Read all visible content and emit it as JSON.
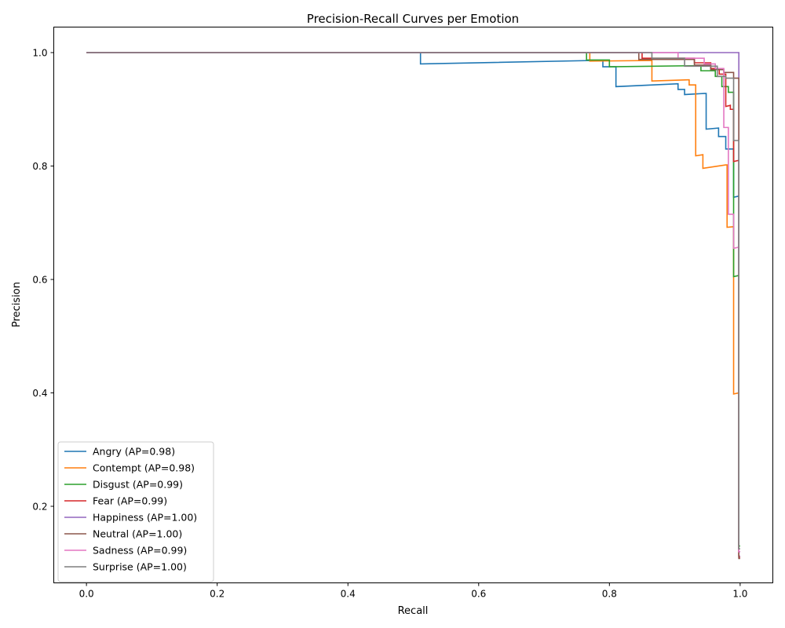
{
  "chart_data": {
    "type": "line",
    "title": "Precision-Recall Curves per Emotion",
    "xlabel": "Recall",
    "ylabel": "Precision",
    "xlim": [
      -0.05,
      1.05
    ],
    "ylim": [
      0.065,
      1.045
    ],
    "xticks": [
      0.0,
      0.2,
      0.4,
      0.6,
      0.8,
      1.0
    ],
    "xtick_labels": [
      "0.0",
      "0.2",
      "0.4",
      "0.6",
      "0.8",
      "1.0"
    ],
    "yticks": [
      0.2,
      0.4,
      0.6,
      0.8,
      1.0
    ],
    "ytick_labels": [
      "0.2",
      "0.4",
      "0.6",
      "0.8",
      "1.0"
    ],
    "grid": false,
    "legend_position": "lower-left",
    "series": [
      {
        "name": "Angry (AP=0.98)",
        "color": "#1f77b4",
        "points": [
          [
            0.0,
            1.0
          ],
          [
            0.511,
            1.0
          ],
          [
            0.511,
            0.98
          ],
          [
            0.77,
            0.986
          ],
          [
            0.79,
            0.986
          ],
          [
            0.79,
            0.975
          ],
          [
            0.81,
            0.975
          ],
          [
            0.81,
            0.94
          ],
          [
            0.905,
            0.945
          ],
          [
            0.905,
            0.935
          ],
          [
            0.915,
            0.935
          ],
          [
            0.915,
            0.926
          ],
          [
            0.945,
            0.928
          ],
          [
            0.948,
            0.928
          ],
          [
            0.948,
            0.865
          ],
          [
            0.967,
            0.867
          ],
          [
            0.967,
            0.852
          ],
          [
            0.978,
            0.852
          ],
          [
            0.978,
            0.83
          ],
          [
            0.99,
            0.83
          ],
          [
            0.99,
            0.745
          ],
          [
            0.998,
            0.747
          ],
          [
            0.998,
            0.12
          ],
          [
            1.0,
            0.12
          ]
        ]
      },
      {
        "name": "Contempt (AP=0.98)",
        "color": "#ff7f0e",
        "points": [
          [
            0.0,
            1.0
          ],
          [
            0.77,
            1.0
          ],
          [
            0.77,
            0.985
          ],
          [
            0.86,
            0.986
          ],
          [
            0.865,
            0.986
          ],
          [
            0.865,
            0.95
          ],
          [
            0.92,
            0.952
          ],
          [
            0.922,
            0.952
          ],
          [
            0.922,
            0.943
          ],
          [
            0.932,
            0.943
          ],
          [
            0.932,
            0.818
          ],
          [
            0.943,
            0.82
          ],
          [
            0.943,
            0.796
          ],
          [
            0.978,
            0.802
          ],
          [
            0.98,
            0.802
          ],
          [
            0.98,
            0.692
          ],
          [
            0.99,
            0.693
          ],
          [
            0.99,
            0.398
          ],
          [
            0.998,
            0.4
          ],
          [
            0.998,
            0.112
          ],
          [
            1.0,
            0.112
          ]
        ]
      },
      {
        "name": "Disgust (AP=0.99)",
        "color": "#2ca02c",
        "points": [
          [
            0.0,
            1.0
          ],
          [
            0.765,
            1.0
          ],
          [
            0.765,
            0.987
          ],
          [
            0.8,
            0.987
          ],
          [
            0.8,
            0.975
          ],
          [
            0.935,
            0.977
          ],
          [
            0.94,
            0.977
          ],
          [
            0.94,
            0.968
          ],
          [
            0.962,
            0.968
          ],
          [
            0.962,
            0.958
          ],
          [
            0.972,
            0.958
          ],
          [
            0.972,
            0.94
          ],
          [
            0.982,
            0.94
          ],
          [
            0.982,
            0.93
          ],
          [
            0.99,
            0.93
          ],
          [
            0.99,
            0.605
          ],
          [
            0.998,
            0.607
          ],
          [
            0.998,
            0.13
          ],
          [
            1.0,
            0.13
          ]
        ]
      },
      {
        "name": "Fear (AP=0.99)",
        "color": "#d62728",
        "points": [
          [
            0.0,
            1.0
          ],
          [
            0.85,
            1.0
          ],
          [
            0.85,
            0.99
          ],
          [
            0.93,
            0.99
          ],
          [
            0.93,
            0.982
          ],
          [
            0.955,
            0.982
          ],
          [
            0.955,
            0.972
          ],
          [
            0.968,
            0.972
          ],
          [
            0.968,
            0.962
          ],
          [
            0.978,
            0.962
          ],
          [
            0.978,
            0.905
          ],
          [
            0.985,
            0.907
          ],
          [
            0.985,
            0.9
          ],
          [
            0.99,
            0.9
          ],
          [
            0.99,
            0.808
          ],
          [
            0.998,
            0.81
          ],
          [
            0.998,
            0.11
          ],
          [
            1.0,
            0.11
          ]
        ]
      },
      {
        "name": "Happiness (AP=1.00)",
        "color": "#9467bd",
        "points": [
          [
            0.0,
            1.0
          ],
          [
            0.998,
            1.0
          ],
          [
            0.998,
            0.112
          ],
          [
            1.0,
            0.112
          ]
        ]
      },
      {
        "name": "Neutral (AP=1.00)",
        "color": "#8c564b",
        "points": [
          [
            0.0,
            1.0
          ],
          [
            0.845,
            1.0
          ],
          [
            0.845,
            0.988
          ],
          [
            0.93,
            0.988
          ],
          [
            0.93,
            0.978
          ],
          [
            0.955,
            0.978
          ],
          [
            0.955,
            0.97
          ],
          [
            0.975,
            0.97
          ],
          [
            0.975,
            0.965
          ],
          [
            0.99,
            0.965
          ],
          [
            0.99,
            0.955
          ],
          [
            0.998,
            0.955
          ],
          [
            0.998,
            0.108
          ],
          [
            1.0,
            0.108
          ]
        ]
      },
      {
        "name": "Sadness (AP=0.99)",
        "color": "#e377c2",
        "points": [
          [
            0.0,
            1.0
          ],
          [
            0.905,
            1.0
          ],
          [
            0.905,
            0.99
          ],
          [
            0.945,
            0.99
          ],
          [
            0.945,
            0.98
          ],
          [
            0.962,
            0.98
          ],
          [
            0.962,
            0.972
          ],
          [
            0.975,
            0.972
          ],
          [
            0.975,
            0.868
          ],
          [
            0.982,
            0.868
          ],
          [
            0.982,
            0.715
          ],
          [
            0.99,
            0.715
          ],
          [
            0.99,
            0.655
          ],
          [
            0.998,
            0.657
          ],
          [
            0.998,
            0.12
          ],
          [
            1.0,
            0.12
          ]
        ]
      },
      {
        "name": "Surprise (AP=1.00)",
        "color": "#7f7f7f",
        "points": [
          [
            0.0,
            1.0
          ],
          [
            0.865,
            1.0
          ],
          [
            0.865,
            0.99
          ],
          [
            0.915,
            0.99
          ],
          [
            0.915,
            0.976
          ],
          [
            0.965,
            0.976
          ],
          [
            0.965,
            0.958
          ],
          [
            0.978,
            0.958
          ],
          [
            0.978,
            0.955
          ],
          [
            0.99,
            0.955
          ],
          [
            0.99,
            0.845
          ],
          [
            0.998,
            0.845
          ],
          [
            0.998,
            0.125
          ],
          [
            1.0,
            0.125
          ]
        ]
      }
    ]
  }
}
